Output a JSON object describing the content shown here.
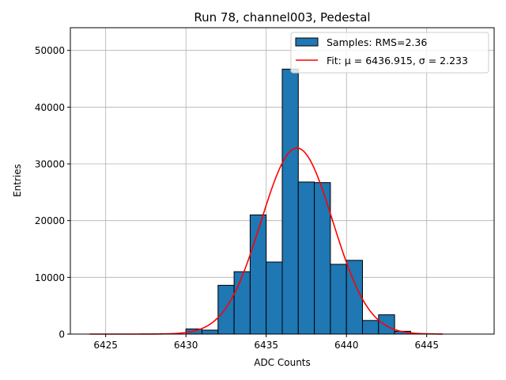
{
  "chart_data": {
    "type": "bar",
    "title": "Run 78, channel003, Pedestal",
    "xlabel": "ADC Counts",
    "ylabel": "Entries",
    "xlim": [
      6422.8,
      6449.2
    ],
    "ylim": [
      0,
      54000
    ],
    "xticks": [
      6425,
      6430,
      6435,
      6440,
      6445
    ],
    "yticks": [
      0,
      10000,
      20000,
      30000,
      40000,
      50000
    ],
    "grid": true,
    "legend_position": "top-right",
    "histogram": {
      "name": "Samples: RMS=2.36",
      "color": "#1f77b4",
      "bins": [
        {
          "x0": 6430,
          "x1": 6431,
          "count": 900
        },
        {
          "x0": 6431,
          "x1": 6432,
          "count": 700
        },
        {
          "x0": 6432,
          "x1": 6433,
          "count": 8600
        },
        {
          "x0": 6433,
          "x1": 6434,
          "count": 11000
        },
        {
          "x0": 6434,
          "x1": 6435,
          "count": 21000
        },
        {
          "x0": 6435,
          "x1": 6436,
          "count": 12700
        },
        {
          "x0": 6436,
          "x1": 6437,
          "count": 46700
        },
        {
          "x0": 6437,
          "x1": 6438,
          "count": 26800
        },
        {
          "x0": 6438,
          "x1": 6439,
          "count": 26700
        },
        {
          "x0": 6439,
          "x1": 6440,
          "count": 12300
        },
        {
          "x0": 6440,
          "x1": 6441,
          "count": 13000
        },
        {
          "x0": 6441,
          "x1": 6442,
          "count": 2400
        },
        {
          "x0": 6442,
          "x1": 6443,
          "count": 3400
        },
        {
          "x0": 6443,
          "x1": 6444,
          "count": 500
        }
      ]
    },
    "fit": {
      "name": "Fit: μ = 6436.915, σ = 2.233",
      "color": "#ff0000",
      "mu": 6436.915,
      "sigma": 2.233,
      "amplitude": 32800,
      "x_range": [
        6424,
        6446
      ]
    }
  }
}
